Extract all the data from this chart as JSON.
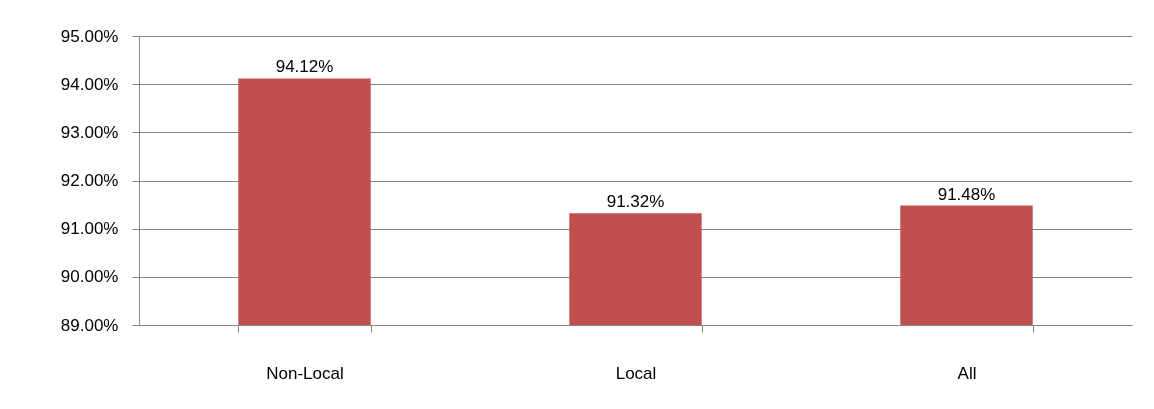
{
  "chart_data": {
    "type": "bar",
    "categories": [
      "Non-Local",
      "Local",
      "All"
    ],
    "values": [
      94.12,
      91.32,
      91.48
    ],
    "value_labels": [
      "94.12%",
      "91.32%",
      "91.48%"
    ],
    "color": "#c0504d",
    "ylim": [
      89,
      95
    ],
    "yticks": [
      {
        "value": 89,
        "label": "89.00%"
      },
      {
        "value": 90,
        "label": "90.00%"
      },
      {
        "value": 91,
        "label": "91.00%"
      },
      {
        "value": 92,
        "label": "92.00%"
      },
      {
        "value": 93,
        "label": "93.00%"
      },
      {
        "value": 94,
        "label": "94.00%"
      },
      {
        "value": 95,
        "label": "95.00%"
      }
    ],
    "grid": "y"
  }
}
